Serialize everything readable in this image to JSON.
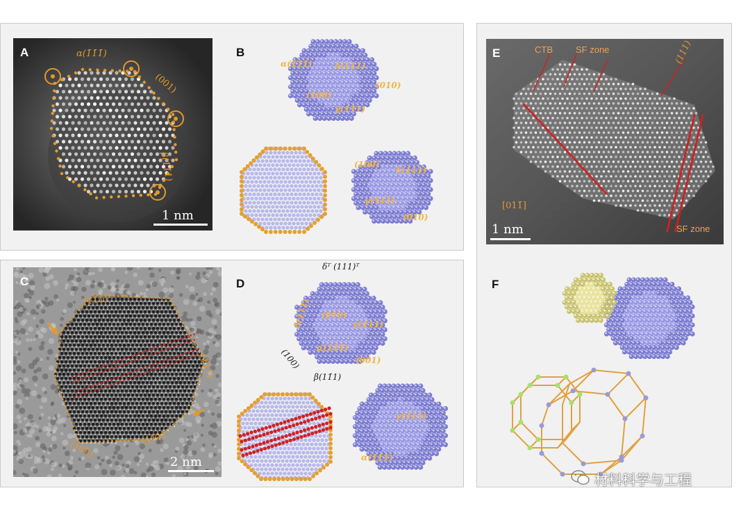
{
  "panels": {
    "A": {
      "label": "A",
      "annotations": {
        "alpha": "α(1̄1̄1̄)",
        "face001": "(001)",
        "beta": "β(11̄1)"
      },
      "scale": "1 nm"
    },
    "B": {
      "label": "B",
      "annotations": {
        "alpha": "α(1̄1̄1̄)",
        "delta": "δ(111)",
        "gamma": "γ(1̄1̄1)",
        "f100": "(100)",
        "f010": "(010)",
        "f100b": "(100)",
        "deltab": "δ(111)",
        "gammab": "γ(1̄1̄1)",
        "f010b": "(010)"
      }
    },
    "C": {
      "label": "C",
      "annotations": {
        "top": "(11̄1)ᵀ",
        "right": "(111)",
        "bottom_left": "(100)",
        "bottom_right": "(11̄1)"
      },
      "scale": "2 nm"
    },
    "D": {
      "label": "D",
      "annotations": {
        "deltaT": "δᵀ (111)ᵀ",
        "delta": "δ(111)",
        "f010": "(010)",
        "gamma": "γ(1̄11)",
        "alpha": "α(1̄1̄1̄)",
        "f001": "(001)",
        "f100": "(100)",
        "beta": "β(11̄1)",
        "gamma2": "γ(1̄11)",
        "alpha2": "α(1̄1̄1̄)"
      }
    },
    "E": {
      "label": "E",
      "annotations": {
        "ctb": "CTB",
        "sfzone": "SF zone",
        "f111": "(111)",
        "zone": "[011̄]",
        "sfzone2": "SF zone"
      },
      "scale": "1 nm"
    },
    "F": {
      "label": "F"
    }
  },
  "watermark": "材料科学与工程",
  "colors": {
    "orange": "#e49a2a",
    "atom": "#8e8ee0",
    "atom_light": "#c8c8f4",
    "yellow": "#e8e29a",
    "red": "#d02020"
  }
}
